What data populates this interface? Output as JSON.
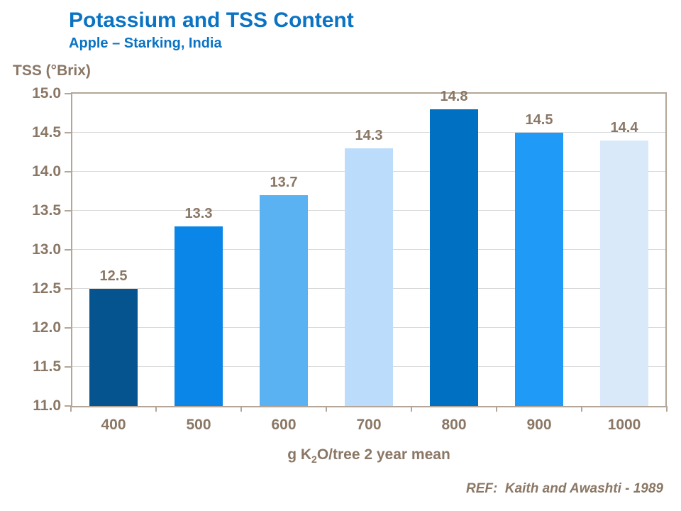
{
  "page": {
    "background": "#ffffff"
  },
  "header": {
    "title": "Potassium and TSS Content",
    "subtitle": "Apple – Starking, India"
  },
  "footer": {
    "ref": "REF:  Kaith and Awashti - 1989"
  },
  "colors": {
    "title_blue": "#0a73c4",
    "text_taupe": "#8a7765",
    "axis_line": "#b3a698",
    "gridline": "#d9d9d9"
  },
  "chart_data": {
    "type": "bar",
    "title": "Potassium and TSS Content",
    "subtitle": "Apple – Starking, India",
    "categories": [
      "400",
      "500",
      "600",
      "700",
      "800",
      "900",
      "1000"
    ],
    "values": [
      12.5,
      13.3,
      13.7,
      14.3,
      14.8,
      14.5,
      14.4
    ],
    "value_labels": [
      "12.5",
      "13.3",
      "13.7",
      "14.3",
      "14.8",
      "14.5",
      "14.4"
    ],
    "bar_colors": [
      "#06548f",
      "#0a86e8",
      "#5bb2f3",
      "#bbddfb",
      "#0070c2",
      "#1f9bf7",
      "#d9e9fa"
    ],
    "ylabel": "TSS (°Brix)",
    "xlabel": "g K2O/tree 2 year mean",
    "xlabel_parts": {
      "pre": "g K",
      "sub": "2",
      "post": "O/tree 2 year mean"
    },
    "ylim": [
      11.0,
      15.0
    ],
    "yticks": [
      "15.0",
      "14.5",
      "14.0",
      "13.5",
      "13.0",
      "12.5",
      "12.0",
      "11.5",
      "11.0"
    ],
    "grid": true,
    "legend": false,
    "annotation": "REF:  Kaith and Awashti - 1989"
  }
}
